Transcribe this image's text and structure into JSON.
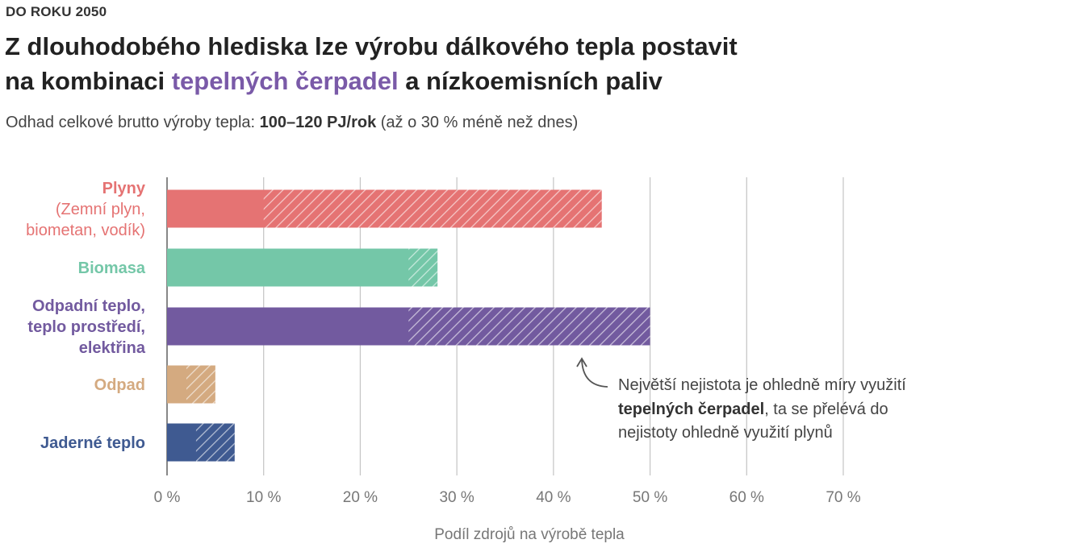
{
  "header": {
    "kicker": "DO ROKU 2050",
    "title_line1": "Z dlouhodobého hlediska lze výrobu dálkového tepla postavit",
    "title_line2_pre": "na kombinaci ",
    "title_line2_highlight": "tepelných čerpadel",
    "title_line2_post": " a nízkoemisních paliv",
    "subtitle_pre": "Odhad celkové brutto výroby tepla: ",
    "subtitle_bold": "100–120 PJ/rok",
    "subtitle_post": " (až o 30 % méně než dnes)"
  },
  "chart_data": {
    "type": "bar",
    "orientation": "horizontal",
    "xlabel": "Podíl zdrojů na výrobě tepla",
    "xlim": [
      0,
      70
    ],
    "xticks": [
      0,
      10,
      20,
      30,
      40,
      50,
      60,
      70
    ],
    "xtick_labels": [
      "0 %",
      "10 %",
      "20 %",
      "30 %",
      "40 %",
      "50 %",
      "60 %",
      "70 %"
    ],
    "grid": true,
    "categories": [
      {
        "label_lines": [
          "Plyny"
        ],
        "sub_lines": [
          "(Zemní plyn,",
          "biometan, vodík)"
        ],
        "min": 10,
        "max": 45,
        "color": "#e57373"
      },
      {
        "label_lines": [
          "Biomasa"
        ],
        "sub_lines": [],
        "min": 25,
        "max": 28,
        "color": "#74c7a8"
      },
      {
        "label_lines": [
          "Odpadní teplo,",
          "teplo prostředí,",
          "elektřina"
        ],
        "sub_lines": [],
        "min": 25,
        "max": 50,
        "color": "#725a9f"
      },
      {
        "label_lines": [
          "Odpad"
        ],
        "sub_lines": [],
        "min": 2,
        "max": 5,
        "color": "#d4aa80"
      },
      {
        "label_lines": [
          "Jaderné teplo"
        ],
        "sub_lines": [],
        "min": 3,
        "max": 7,
        "color": "#3f5a91"
      }
    ],
    "annotation": {
      "line1": "Největší nejistota je ohledně míry využití",
      "line2_bold": "tepelných čerpadel",
      "line2_rest": ", ta se přelévá do",
      "line3": "nejistoty ohledně využití plynů"
    }
  }
}
